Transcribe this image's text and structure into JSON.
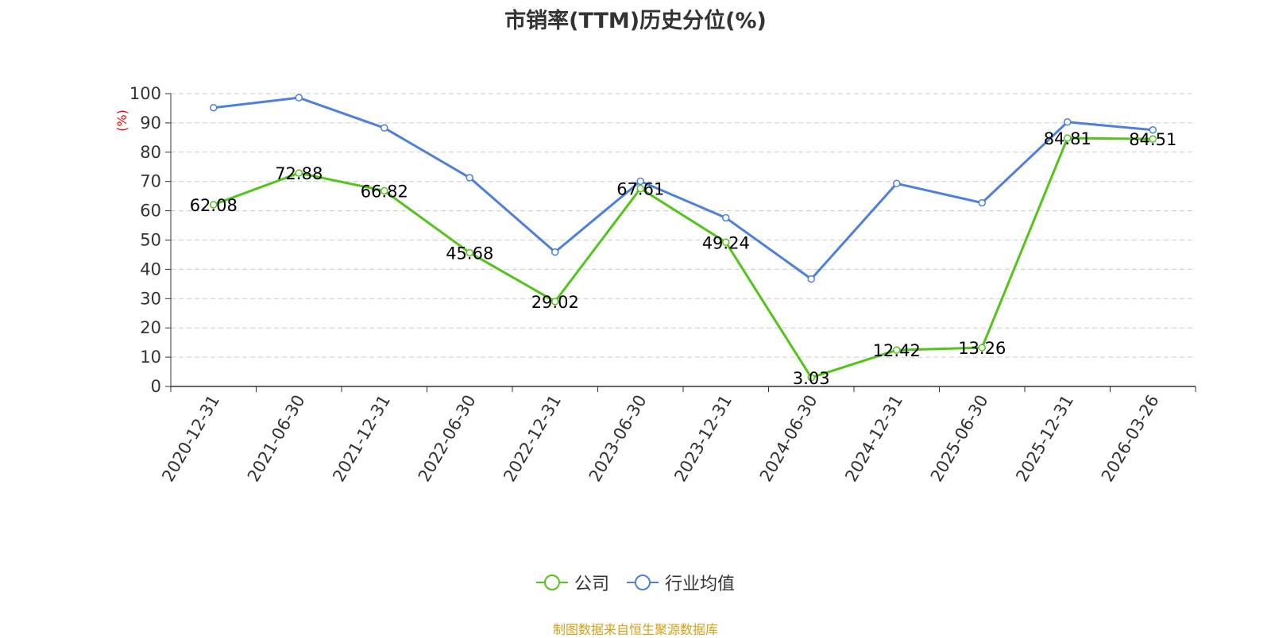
{
  "chart_data": {
    "type": "line",
    "title": "市销率(TTM)历史分位(%)",
    "ylabel": "(%)",
    "ylim": [
      0,
      100
    ],
    "yticks": [
      0,
      10,
      20,
      30,
      40,
      50,
      60,
      70,
      80,
      90,
      100
    ],
    "grid": "horizontal dashed",
    "legend_position": "bottom",
    "x_axis_ticks": [
      "2020-12-31",
      "2021-06-30",
      "2021-12-31",
      "2022-06-30",
      "2022-12-31",
      "2023-06-30",
      "2023-12-31",
      "2024-06-30",
      "2024-12-31",
      "2025-06-30",
      "2025-12-31",
      "2026-03-26"
    ],
    "series": [
      {
        "name": "公司",
        "color": "#52c41a",
        "points": [
          {
            "x": "2020-12-31",
            "y": 62.08
          },
          {
            "x": "2021-06-30",
            "y": 72.88
          },
          {
            "x": "2021-12-31",
            "y": 66.82
          },
          {
            "x": "2022-06-30",
            "y": 45.68
          },
          {
            "x": "2022-12-31",
            "y": 29.02
          },
          {
            "x": "2023-06-30",
            "y": 67.61
          },
          {
            "x": "2023-12-31",
            "y": 49.24
          },
          {
            "x": "2024-06-30",
            "y": 3.03
          },
          {
            "x": "2024-12-31",
            "y": 12.42
          },
          {
            "x": "2025-06-30",
            "y": 13.26
          },
          {
            "x": "2025-12-31",
            "y": 84.81
          },
          {
            "x": "2026-03-26",
            "y": 84.51
          }
        ],
        "labels": [
          "62.08",
          "72.88",
          "66.82",
          "45.68",
          "29.02",
          "67.61",
          "49.24",
          "3.03",
          "12.42",
          "13.26",
          "84.81",
          "84.51"
        ]
      },
      {
        "name": "行业均值",
        "color": "#4e7fdc",
        "points": [
          {
            "x": "2020-12-31",
            "y": 95.2
          },
          {
            "x": "2021-06-30",
            "y": 98.6
          },
          {
            "x": "2021-12-31",
            "y": 88.3
          },
          {
            "x": "2022-06-30",
            "y": 71.3
          },
          {
            "x": "2022-12-31",
            "y": 45.9
          },
          {
            "x": "2023-06-30",
            "y": 70.1
          },
          {
            "x": "2023-12-31",
            "y": 57.6
          },
          {
            "x": "2024-06-30",
            "y": 36.7
          },
          {
            "x": "2024-12-31",
            "y": 69.3
          },
          {
            "x": "2025-06-30",
            "y": 62.7
          },
          {
            "x": "2025-12-31",
            "y": 90.3
          },
          {
            "x": "2026-03-26",
            "y": 87.6
          }
        ]
      }
    ]
  },
  "footer": "制图数据来自恒生聚源数据库",
  "colors": {
    "axis": "#333333",
    "grid": "#cccccc",
    "ylabel": "#ff0000",
    "footer": "#d4a017"
  }
}
